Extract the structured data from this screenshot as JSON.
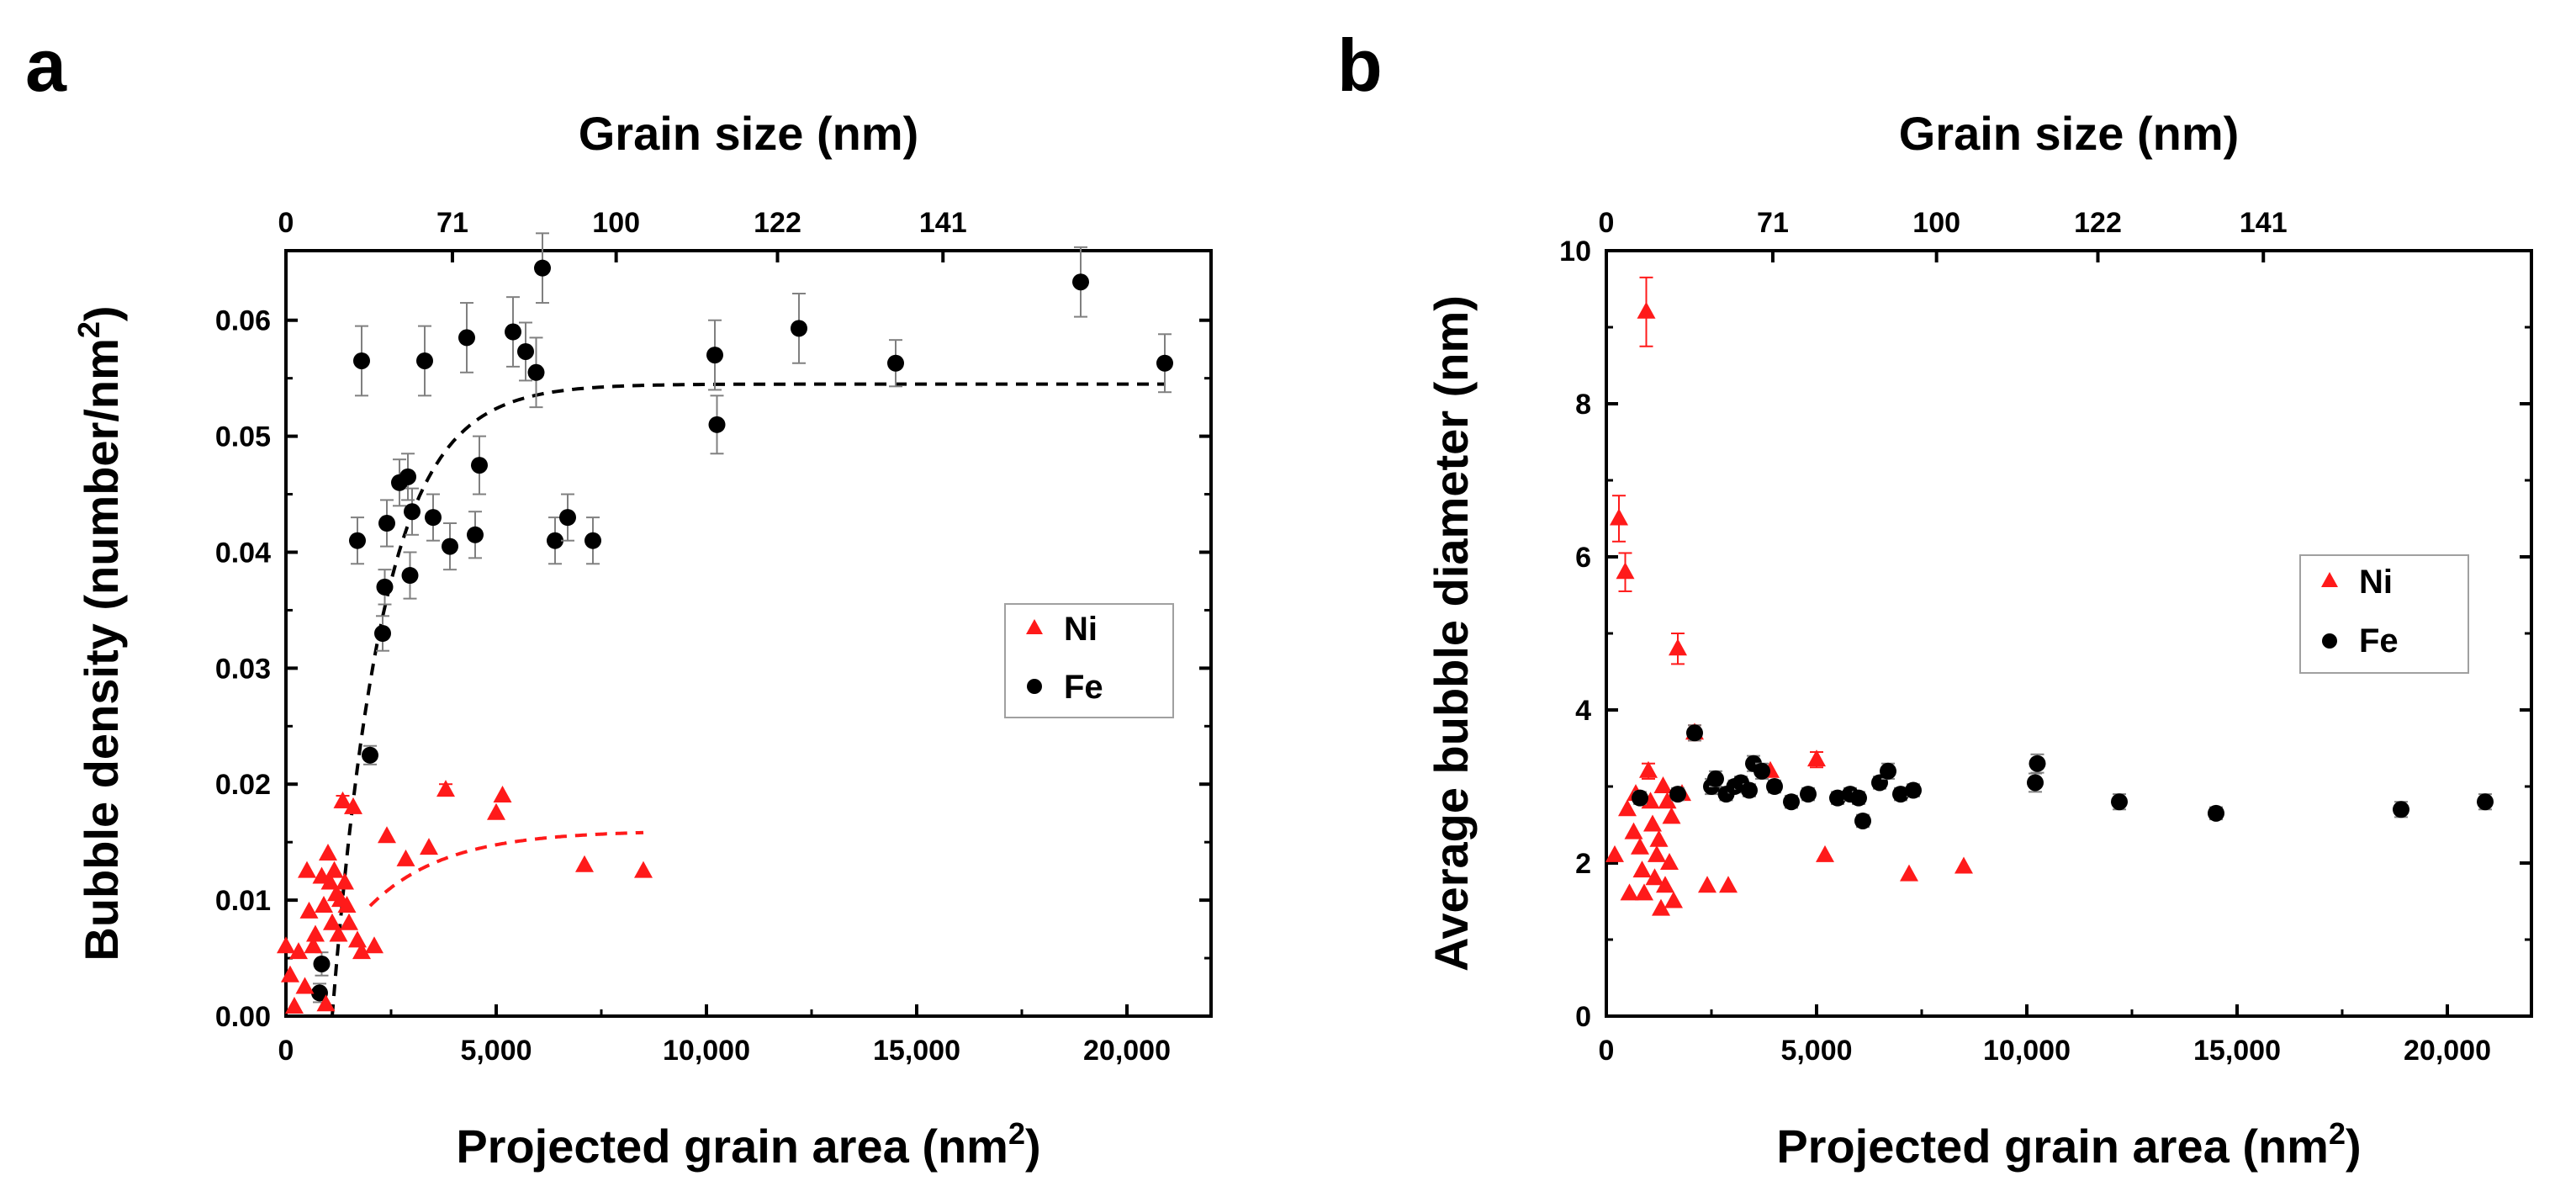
{
  "colors": {
    "ni": "#ff1a1a",
    "fe": "#000000",
    "errorbar": "#808080",
    "legend_border": "#a0a0a0"
  },
  "chart_data": [
    {
      "panel": "a",
      "type": "scatter",
      "xlabel": "Projected grain area (nm",
      "xlabel_sup": "2",
      "xlabel_tail": ")",
      "ylabel": "Bubble density (number/nm",
      "ylabel_sup": "2",
      "ylabel_tail": ")",
      "top_xlabel": "Grain size (nm)",
      "xlim": [
        0,
        22000
      ],
      "ylim": [
        0,
        0.066
      ],
      "xticks": [
        0,
        5000,
        10000,
        15000,
        20000
      ],
      "xtick_labels": [
        "0",
        "5,000",
        "10,000",
        "15,000",
        "20,000"
      ],
      "yticks": [
        0,
        0.01,
        0.02,
        0.03,
        0.04,
        0.05,
        0.06
      ],
      "ytick_labels": [
        "0.00",
        "0.01",
        "0.02",
        "0.03",
        "0.04",
        "0.05",
        "0.06"
      ],
      "top_ticks_area": [
        0,
        3959,
        7853,
        11690,
        15625
      ],
      "top_tick_labels": [
        "0",
        "71",
        "100",
        "122",
        "141"
      ],
      "legend": {
        "position": "right-middle",
        "entries": [
          "Ni",
          "Fe"
        ]
      },
      "series": [
        {
          "name": "Fe",
          "marker": "circle",
          "points": [
            [
              800,
              0.002,
              0.0008
            ],
            [
              850,
              0.0045,
              0.001
            ],
            [
              1700,
              0.041,
              0.002
            ],
            [
              1800,
              0.0565,
              0.003
            ],
            [
              2000,
              0.0225,
              0.0008
            ],
            [
              2300,
              0.033,
              0.0015
            ],
            [
              2350,
              0.037,
              0.0015
            ],
            [
              2400,
              0.0425,
              0.002
            ],
            [
              2700,
              0.046,
              0.002
            ],
            [
              2900,
              0.0465,
              0.002
            ],
            [
              2950,
              0.038,
              0.002
            ],
            [
              3000,
              0.0435,
              0.002
            ],
            [
              3300,
              0.0565,
              0.003
            ],
            [
              3500,
              0.043,
              0.002
            ],
            [
              3900,
              0.0405,
              0.002
            ],
            [
              4300,
              0.0585,
              0.003
            ],
            [
              4500,
              0.0415,
              0.002
            ],
            [
              4600,
              0.0475,
              0.0025
            ],
            [
              5400,
              0.059,
              0.003
            ],
            [
              5700,
              0.0573,
              0.0025
            ],
            [
              5950,
              0.0555,
              0.003
            ],
            [
              6100,
              0.0645,
              0.003
            ],
            [
              6400,
              0.041,
              0.002
            ],
            [
              6700,
              0.043,
              0.002
            ],
            [
              7300,
              0.041,
              0.002
            ],
            [
              10200,
              0.057,
              0.003
            ],
            [
              10250,
              0.051,
              0.0025
            ],
            [
              12200,
              0.0593,
              0.003
            ],
            [
              14500,
              0.0563,
              0.002
            ],
            [
              18900,
              0.0633,
              0.003
            ],
            [
              20900,
              0.0563,
              0.0025
            ]
          ]
        },
        {
          "name": "Ni",
          "marker": "triangle",
          "points": [
            [
              0,
              0.006,
              0
            ],
            [
              100,
              0.0035,
              0
            ],
            [
              200,
              0.0008,
              0
            ],
            [
              300,
              0.0055,
              0
            ],
            [
              450,
              0.0025,
              0
            ],
            [
              500,
              0.0125,
              0
            ],
            [
              550,
              0.009,
              0
            ],
            [
              650,
              0.006,
              0
            ],
            [
              700,
              0.007,
              0
            ],
            [
              850,
              0.012,
              0
            ],
            [
              900,
              0.0095,
              0
            ],
            [
              950,
              0.001,
              0
            ],
            [
              1000,
              0.014,
              0
            ],
            [
              1050,
              0.0115,
              0
            ],
            [
              1100,
              0.008,
              0
            ],
            [
              1150,
              0.0125,
              0
            ],
            [
              1200,
              0.0105,
              0
            ],
            [
              1250,
              0.007,
              0
            ],
            [
              1300,
              0.01,
              0
            ],
            [
              1350,
              0.0185,
              0.0005
            ],
            [
              1400,
              0.0115,
              0
            ],
            [
              1450,
              0.0095,
              0
            ],
            [
              1500,
              0.008,
              0
            ],
            [
              1600,
              0.018,
              0
            ],
            [
              1700,
              0.0065,
              0
            ],
            [
              1800,
              0.0055,
              0
            ],
            [
              2100,
              0.006,
              0
            ],
            [
              2400,
              0.0155,
              0
            ],
            [
              2850,
              0.0135,
              0
            ],
            [
              3400,
              0.0145,
              0
            ],
            [
              3800,
              0.0195,
              0.0005
            ],
            [
              5000,
              0.0175,
              0
            ],
            [
              5150,
              0.019,
              0
            ],
            [
              7100,
              0.013,
              0
            ],
            [
              8500,
              0.0125,
              0
            ]
          ]
        }
      ],
      "fit_curves": [
        {
          "series": "Fe",
          "style": "dashed",
          "x_range": [
            1100,
            20900
          ],
          "model": "exp_saturation",
          "ymax": 0.0545,
          "x0": 1100,
          "tau": 1200
        },
        {
          "series": "Ni",
          "style": "dashed",
          "x_range": [
            2000,
            8500
          ],
          "model": "exp_saturation_offset",
          "ymax": 0.016,
          "y0": 0.0095,
          "x0": 2000,
          "tau": 1800
        }
      ]
    },
    {
      "panel": "b",
      "type": "scatter",
      "xlabel": "Projected grain area (nm",
      "xlabel_sup": "2",
      "xlabel_tail": ")",
      "ylabel": "Average bubble diameter (nm)",
      "ylabel_sup": "",
      "ylabel_tail": "",
      "top_xlabel": "Grain size (nm)",
      "xlim": [
        0,
        22000
      ],
      "ylim": [
        0,
        10
      ],
      "xticks": [
        0,
        5000,
        10000,
        15000,
        20000
      ],
      "xtick_labels": [
        "0",
        "5,000",
        "10,000",
        "15,000",
        "20,000"
      ],
      "yticks": [
        0,
        2,
        4,
        6,
        8,
        10
      ],
      "ytick_labels": [
        "0",
        "2",
        "4",
        "6",
        "8",
        "10"
      ],
      "top_ticks_area": [
        0,
        3959,
        7853,
        11690,
        15625
      ],
      "top_tick_labels": [
        "0",
        "71",
        "100",
        "122",
        "141"
      ],
      "legend": {
        "position": "right-middle",
        "entries": [
          "Ni",
          "Fe"
        ]
      },
      "series": [
        {
          "name": "Ni",
          "marker": "triangle",
          "points": [
            [
              200,
              2.1,
              0
            ],
            [
              300,
              6.5,
              0.3
            ],
            [
              450,
              5.8,
              0.25
            ],
            [
              500,
              2.7,
              0
            ],
            [
              550,
              1.6,
              0
            ],
            [
              650,
              2.4,
              0
            ],
            [
              700,
              2.9,
              0
            ],
            [
              800,
              2.2,
              0
            ],
            [
              850,
              1.9,
              0
            ],
            [
              900,
              1.6,
              0
            ],
            [
              950,
              9.2,
              0.45
            ],
            [
              1000,
              3.2,
              0.1
            ],
            [
              1050,
              2.8,
              0
            ],
            [
              1100,
              2.5,
              0
            ],
            [
              1150,
              1.8,
              0
            ],
            [
              1200,
              2.1,
              0
            ],
            [
              1250,
              2.3,
              0
            ],
            [
              1300,
              1.4,
              0
            ],
            [
              1350,
              3.0,
              0
            ],
            [
              1400,
              1.7,
              0
            ],
            [
              1450,
              2.8,
              0
            ],
            [
              1500,
              2.0,
              0
            ],
            [
              1550,
              2.6,
              0
            ],
            [
              1600,
              1.5,
              0
            ],
            [
              1700,
              4.8,
              0.2
            ],
            [
              1800,
              2.9,
              0
            ],
            [
              2100,
              3.7,
              0.1
            ],
            [
              2400,
              1.7,
              0
            ],
            [
              2900,
              1.7,
              0
            ],
            [
              3900,
              3.2,
              0
            ],
            [
              5000,
              3.35,
              0.1
            ],
            [
              5200,
              2.1,
              0
            ],
            [
              7200,
              1.85,
              0
            ],
            [
              8500,
              1.95,
              0
            ]
          ]
        },
        {
          "name": "Fe",
          "marker": "circle",
          "points": [
            [
              800,
              2.85,
              0.08
            ],
            [
              1700,
              2.9,
              0.08
            ],
            [
              2100,
              3.7,
              0.1
            ],
            [
              2500,
              3.0,
              0.1
            ],
            [
              2600,
              3.1,
              0.1
            ],
            [
              2850,
              2.9,
              0.08
            ],
            [
              3050,
              3.0,
              0.08
            ],
            [
              3200,
              3.05,
              0.08
            ],
            [
              3400,
              2.95,
              0.08
            ],
            [
              3500,
              3.3,
              0.1
            ],
            [
              3700,
              3.2,
              0.1
            ],
            [
              4000,
              3.0,
              0.08
            ],
            [
              4400,
              2.8,
              0.08
            ],
            [
              4800,
              2.9,
              0.08
            ],
            [
              5500,
              2.85,
              0.08
            ],
            [
              5800,
              2.9,
              0.08
            ],
            [
              6000,
              2.85,
              0.08
            ],
            [
              6100,
              2.55,
              0.08
            ],
            [
              6500,
              3.05,
              0.08
            ],
            [
              6700,
              3.2,
              0.1
            ],
            [
              7000,
              2.9,
              0.08
            ],
            [
              7300,
              2.95,
              0.08
            ],
            [
              10200,
              3.05,
              0.12
            ],
            [
              10250,
              3.3,
              0.12
            ],
            [
              12200,
              2.8,
              0.1
            ],
            [
              14500,
              2.65,
              0.08
            ],
            [
              18900,
              2.7,
              0.1
            ],
            [
              20900,
              2.8,
              0.1
            ]
          ]
        }
      ]
    }
  ]
}
